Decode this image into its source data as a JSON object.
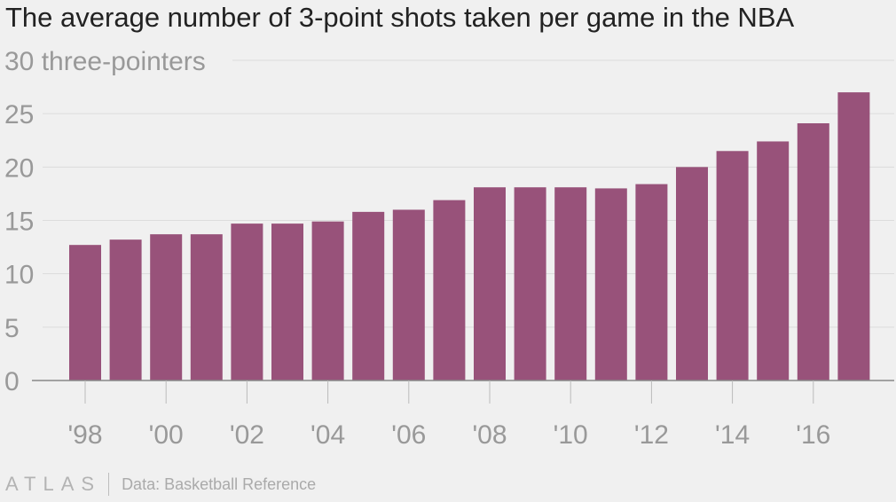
{
  "chart_data": {
    "type": "bar",
    "title": "The average number of 3-point shots taken per game in the NBA",
    "unit_label": "three-pointers",
    "categories": [
      "'98",
      "'99",
      "'00",
      "'01",
      "'02",
      "'03",
      "'04",
      "'05",
      "'06",
      "'07",
      "'08",
      "'09",
      "'10",
      "'11",
      "'12",
      "'13",
      "'14",
      "'15",
      "'16",
      "'17"
    ],
    "values": [
      12.7,
      13.2,
      13.7,
      13.7,
      14.7,
      14.7,
      14.9,
      15.8,
      16.0,
      16.9,
      18.1,
      18.1,
      18.1,
      18.0,
      18.4,
      20.0,
      21.5,
      22.4,
      24.1,
      27.0
    ],
    "x_tick_labels": [
      "'98",
      "'00",
      "'02",
      "'04",
      "'06",
      "'08",
      "'10",
      "'12",
      "'14",
      "'16"
    ],
    "y_ticks": [
      0,
      5,
      10,
      15,
      20,
      25,
      30
    ],
    "ylim": [
      0,
      30
    ],
    "grid": true,
    "bar_color": "#98527a"
  },
  "footer": {
    "brand": "ATLAS",
    "source": "Data: Basketball Reference"
  }
}
